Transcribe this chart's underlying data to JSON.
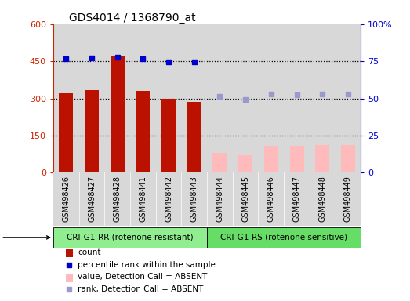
{
  "title": "GDS4014 / 1368790_at",
  "samples": [
    "GSM498426",
    "GSM498427",
    "GSM498428",
    "GSM498441",
    "GSM498442",
    "GSM498443",
    "GSM498444",
    "GSM498445",
    "GSM498446",
    "GSM498447",
    "GSM498448",
    "GSM498449"
  ],
  "count_values": [
    320,
    332,
    472,
    330,
    298,
    285,
    null,
    null,
    null,
    null,
    null,
    null
  ],
  "count_absent_values": [
    null,
    null,
    null,
    null,
    null,
    null,
    82,
    70,
    108,
    108,
    112,
    112
  ],
  "rank_values": [
    460,
    462,
    465,
    461,
    448,
    447,
    null,
    null,
    null,
    null,
    null,
    null
  ],
  "rank_absent_values": [
    null,
    null,
    null,
    null,
    null,
    null,
    308,
    295,
    318,
    315,
    318,
    318
  ],
  "groups": [
    {
      "label": "CRI-G1-RR (rotenone resistant)",
      "indices": [
        0,
        1,
        2,
        3,
        4,
        5
      ],
      "color": "#90ee90"
    },
    {
      "label": "CRI-G1-RS (rotenone sensitive)",
      "indices": [
        6,
        7,
        8,
        9,
        10,
        11
      ],
      "color": "#66dd66"
    }
  ],
  "left_ylim": [
    0,
    600
  ],
  "left_yticks": [
    0,
    150,
    300,
    450,
    600
  ],
  "left_ylabel_color": "#cc2200",
  "right_yticks": [
    0,
    150,
    300,
    450,
    600
  ],
  "right_yticklabels": [
    "0",
    "25",
    "50",
    "75",
    "100%"
  ],
  "right_ylabel_color": "#0000cc",
  "bar_color_present": "#bb1100",
  "bar_color_absent": "#ffbbbb",
  "dot_color_present": "#0000cc",
  "dot_color_absent": "#9999cc",
  "col_bg_color": "#d8d8d8",
  "plot_bg_color": "#ffffff",
  "legend_items": [
    {
      "label": "count",
      "color": "#bb1100",
      "type": "bar"
    },
    {
      "label": "percentile rank within the sample",
      "color": "#0000cc",
      "type": "dot"
    },
    {
      "label": "value, Detection Call = ABSENT",
      "color": "#ffbbbb",
      "type": "bar"
    },
    {
      "label": "rank, Detection Call = ABSENT",
      "color": "#9999cc",
      "type": "dot"
    }
  ],
  "hlines": [
    150,
    300,
    450
  ],
  "bar_width": 0.55,
  "figsize": [
    5.23,
    3.84
  ],
  "dpi": 100
}
